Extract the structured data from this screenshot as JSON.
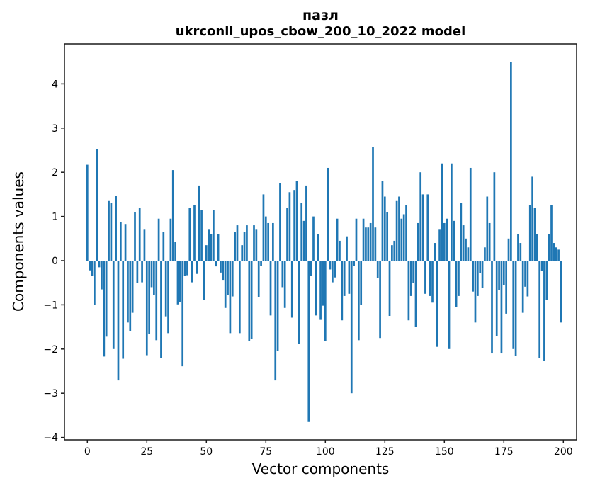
{
  "chart_data": {
    "type": "bar",
    "title": "пазл",
    "subtitle": "ukrconll_upos_cbow_200_10_2022 model",
    "xlabel": "Vector components",
    "ylabel": "Components values",
    "x_ticks": [
      0,
      25,
      50,
      75,
      100,
      125,
      150,
      175,
      200
    ],
    "y_ticks": [
      -4,
      -3,
      -2,
      -1,
      0,
      1,
      2,
      3,
      4
    ],
    "ylim": [
      -4.06,
      4.91
    ],
    "xlim": [
      -9.6,
      205.6
    ],
    "grid": false,
    "legend": "none",
    "bar_color": "#1f77b4",
    "n_components": 200,
    "values": [
      2.17,
      -0.22,
      -0.35,
      -1.0,
      2.52,
      -0.15,
      -0.65,
      -2.17,
      -1.72,
      1.35,
      1.3,
      -2.0,
      1.47,
      -2.71,
      0.87,
      -2.22,
      0.83,
      -1.4,
      -1.6,
      -1.18,
      1.1,
      -0.51,
      1.2,
      -0.49,
      0.7,
      -2.14,
      -1.66,
      -0.6,
      -0.77,
      -1.8,
      0.95,
      -2.2,
      0.65,
      -1.26,
      -1.64,
      0.95,
      2.05,
      0.42,
      -0.99,
      -0.94,
      -2.39,
      -0.35,
      -0.33,
      1.2,
      -0.49,
      1.25,
      -0.3,
      1.7,
      1.15,
      -0.89,
      0.35,
      0.7,
      0.6,
      1.15,
      -0.13,
      0.6,
      -0.27,
      -0.45,
      -1.07,
      -0.78,
      -1.64,
      -0.81,
      0.65,
      0.8,
      -1.64,
      0.35,
      0.65,
      0.8,
      -1.82,
      -1.77,
      0.8,
      0.7,
      -0.83,
      -0.12,
      1.5,
      1.0,
      0.85,
      -1.24,
      0.85,
      -2.71,
      -2.04,
      1.75,
      -0.6,
      -1.07,
      1.2,
      1.55,
      -1.29,
      1.6,
      1.8,
      -1.88,
      1.3,
      0.9,
      1.7,
      -3.65,
      -0.35,
      1.0,
      -1.24,
      0.6,
      -1.34,
      -1.02,
      -1.82,
      2.1,
      -0.2,
      -0.49,
      -0.38,
      0.95,
      0.45,
      -1.35,
      -0.8,
      0.55,
      -0.75,
      -3.0,
      -0.12,
      0.95,
      -1.8,
      -1.0,
      0.95,
      0.75,
      0.75,
      0.85,
      2.58,
      0.75,
      -0.4,
      -1.75,
      1.8,
      1.45,
      1.1,
      -1.25,
      0.35,
      0.45,
      1.35,
      1.45,
      0.95,
      1.05,
      1.25,
      -1.35,
      -0.8,
      -0.5,
      -1.5,
      0.85,
      2.0,
      1.5,
      -0.75,
      1.5,
      -0.8,
      -0.95,
      0.4,
      -1.95,
      0.7,
      2.2,
      0.85,
      0.95,
      -2.0,
      2.2,
      0.9,
      -1.05,
      -0.8,
      1.3,
      0.8,
      0.5,
      0.3,
      2.1,
      -0.7,
      -1.4,
      -0.8,
      -0.28,
      -0.62,
      0.3,
      1.45,
      0.85,
      -2.1,
      2.0,
      -1.7,
      -0.67,
      -2.1,
      -0.55,
      -1.2,
      0.5,
      4.5,
      -2.0,
      -2.15,
      0.6,
      0.4,
      -1.18,
      -0.59,
      -0.81,
      1.25,
      1.9,
      1.2,
      0.6,
      -2.2,
      -0.23,
      -2.27,
      -0.89,
      0.6,
      1.25,
      0.4,
      0.3,
      0.25,
      -1.4
    ]
  }
}
